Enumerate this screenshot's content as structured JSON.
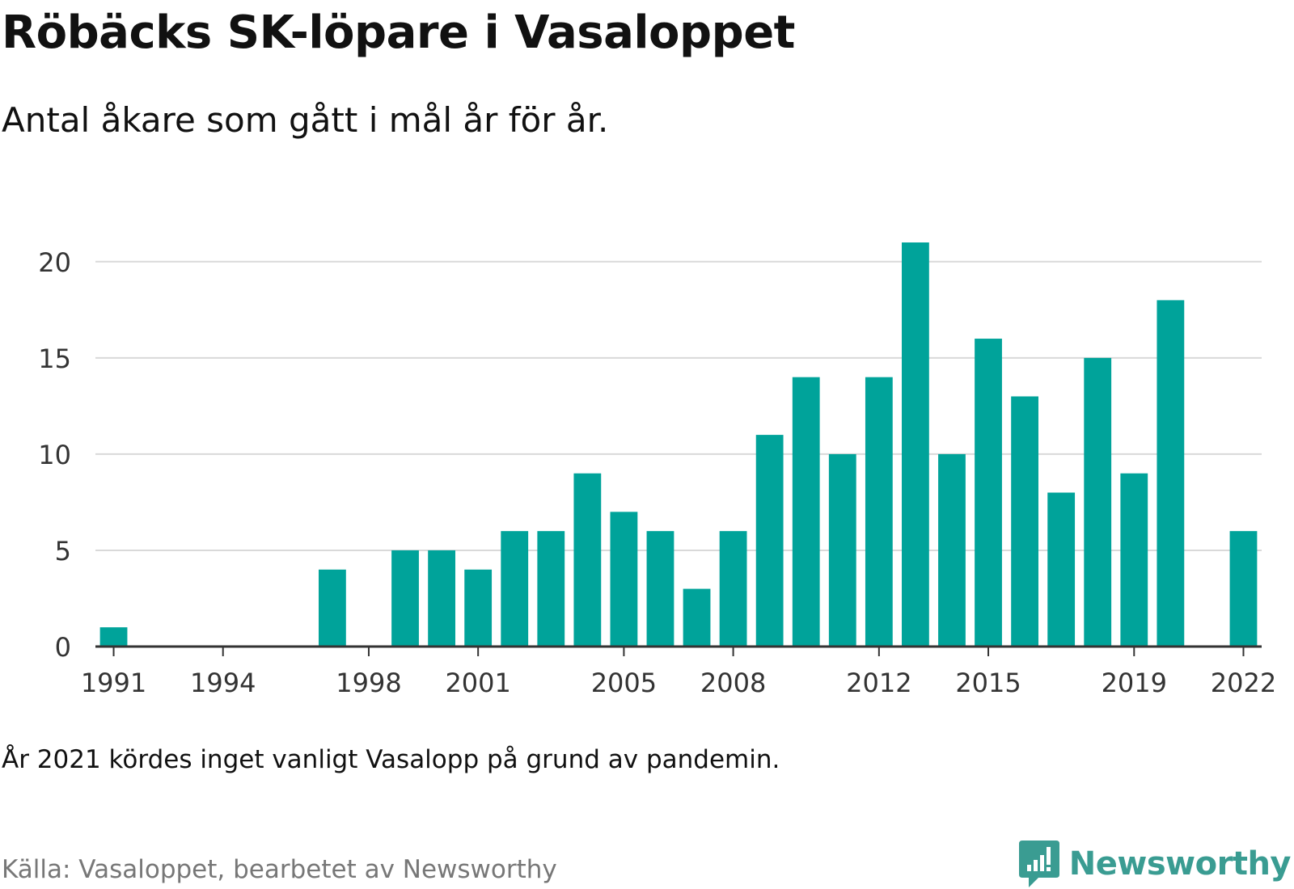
{
  "title": "Röbäcks SK-löpare i Vasaloppet",
  "subtitle": "Antal åkare som gått i mål år för år.",
  "note": "År 2021 kördes inget vanligt Vasalopp på grund av pandemin.",
  "source": "Källa: Vasaloppet, bearbetet av Newsworthy",
  "brand": {
    "name": "Newsworthy",
    "icon": "newsworthy-logo-icon",
    "color": "#3a9c92"
  },
  "chart_data": {
    "type": "bar",
    "title": "",
    "xlabel": "",
    "ylabel": "",
    "bar_color": "#00a39a",
    "grid": true,
    "ylim": [
      0,
      21
    ],
    "yticks": [
      0,
      5,
      10,
      15,
      20
    ],
    "xticks": [
      "1991",
      "1994",
      "1998",
      "2001",
      "2005",
      "2008",
      "2012",
      "2015",
      "2019",
      "2022"
    ],
    "categories": [
      "1991",
      "1992",
      "1993",
      "1994",
      "1995",
      "1996",
      "1997",
      "1998",
      "1999",
      "2000",
      "2001",
      "2002",
      "2003",
      "2004",
      "2005",
      "2006",
      "2007",
      "2008",
      "2009",
      "2010",
      "2011",
      "2012",
      "2013",
      "2014",
      "2015",
      "2016",
      "2017",
      "2018",
      "2019",
      "2020",
      "2021",
      "2022"
    ],
    "values": [
      1,
      0,
      0,
      0,
      0,
      0,
      4,
      0,
      5,
      5,
      4,
      6,
      6,
      9,
      7,
      6,
      3,
      6,
      11,
      14,
      10,
      14,
      21,
      10,
      16,
      13,
      8,
      15,
      9,
      18,
      0,
      6
    ]
  }
}
